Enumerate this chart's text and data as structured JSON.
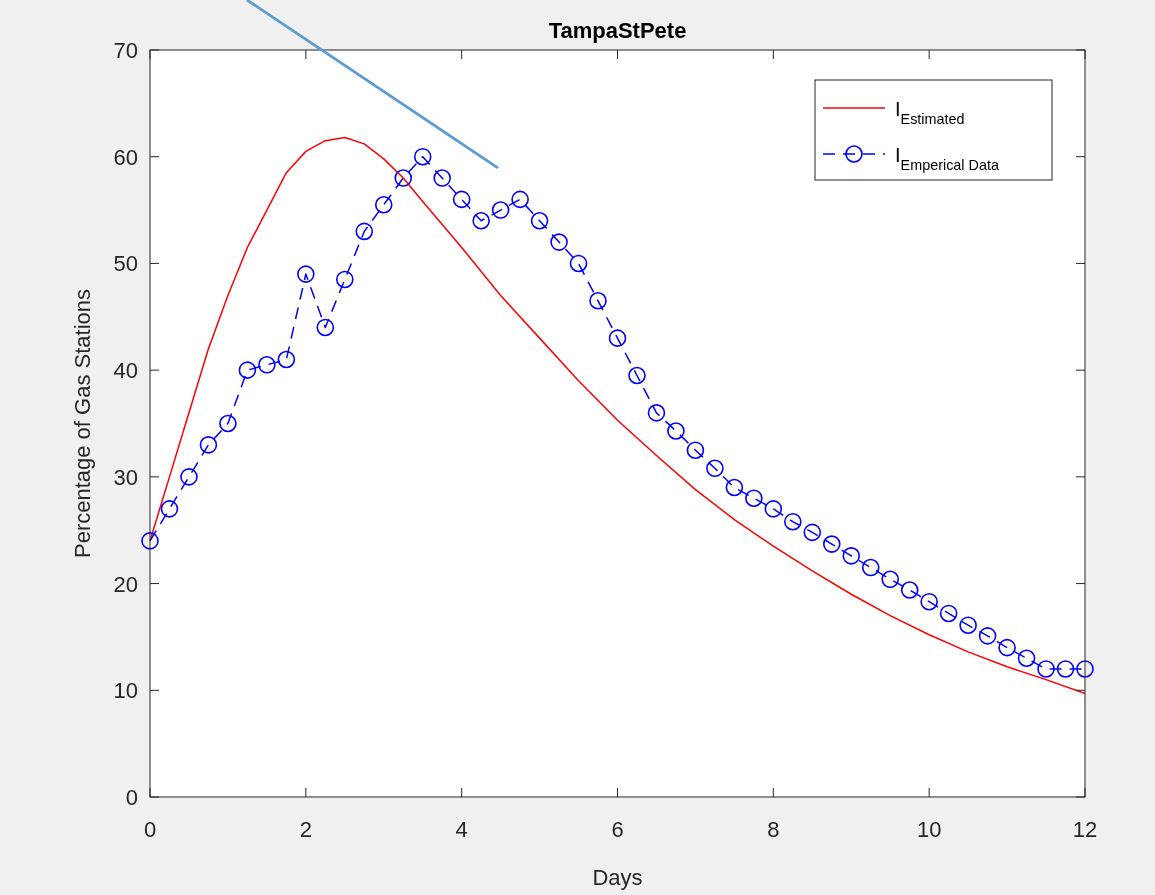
{
  "chart_data": {
    "type": "line",
    "title": "TampaStPete",
    "xlabel": "Days",
    "ylabel": "Percentage of Gas Stations",
    "xlim": [
      0,
      12
    ],
    "xticks": [
      0,
      2,
      4,
      6,
      8,
      10,
      12
    ],
    "ylim": [
      0,
      70
    ],
    "yticks": [
      0,
      10,
      20,
      30,
      40,
      50,
      60,
      70
    ],
    "grid": false,
    "legend": "top right",
    "series": [
      {
        "name": "I$_{Estimated}$",
        "color": "#ff0000",
        "marker": "none",
        "line_style": "solid",
        "x": [
          0,
          0.25,
          0.5,
          0.75,
          1,
          1.25,
          1.5,
          1.75,
          2,
          2.25,
          2.5,
          2.75,
          3,
          3.25,
          3.5,
          4,
          4.5,
          5,
          5.5,
          6,
          6.5,
          7,
          7.5,
          8,
          8.5,
          9,
          9.5,
          10,
          10.5,
          11,
          11.5,
          12
        ],
        "values": [
          24,
          30,
          36,
          42,
          47,
          51.5,
          55,
          58.5,
          60.5,
          61.5,
          61.8,
          61.2,
          59.8,
          58,
          55.8,
          51.5,
          47,
          43,
          39,
          35.3,
          32,
          28.8,
          26,
          23.5,
          21.2,
          19,
          17,
          15.2,
          13.6,
          12.2,
          11,
          9.7
        ]
      },
      {
        "name": "I$_{Emperical Data}$",
        "color": "#0000ff",
        "marker": "circle",
        "line_style": "dashed",
        "x": [
          0,
          0.25,
          0.5,
          0.75,
          1,
          1.25,
          1.5,
          1.75,
          2,
          2.25,
          2.5,
          2.75,
          3,
          3.25,
          3.5,
          3.75,
          4,
          4.25,
          4.5,
          4.75,
          5,
          5.25,
          5.5,
          5.75,
          6,
          6.25,
          6.5,
          6.75,
          7,
          7.25,
          7.5,
          7.75,
          8,
          8.25,
          8.5,
          8.75,
          9,
          9.25,
          9.5,
          9.75,
          10,
          10.25,
          10.5,
          10.75,
          11,
          11.25,
          11.5,
          11.75,
          12
        ],
        "values": [
          24,
          27,
          30,
          33,
          35,
          40,
          40.5,
          41,
          49,
          44,
          48.5,
          53,
          55.5,
          58,
          60,
          58,
          56,
          54,
          55,
          56,
          54,
          52,
          50,
          46.5,
          43,
          39.5,
          36,
          34.3,
          32.5,
          30.8,
          29,
          28,
          27,
          25.8,
          24.8,
          23.7,
          22.6,
          21.5,
          20.4,
          19.4,
          18.3,
          17.2,
          16.1,
          15.1,
          14,
          13,
          12,
          12,
          12
        ]
      }
    ]
  }
}
